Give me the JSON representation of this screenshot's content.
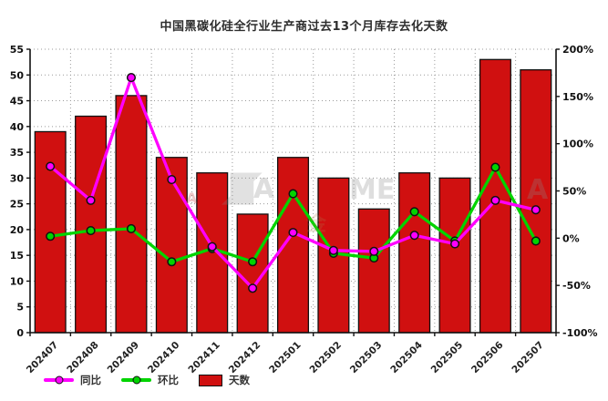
{
  "chart": {
    "title": "中国黑碳化硅全行业生产商过去13个月库存去化天数"
  },
  "chart_data": {
    "type": "combo",
    "categories": [
      "202407",
      "202408",
      "202409",
      "202410",
      "202411",
      "202412",
      "202501",
      "202502",
      "202503",
      "202504",
      "202505",
      "202506",
      "202507"
    ],
    "series": [
      {
        "name": "同比",
        "type": "line",
        "axis": "right",
        "color": "#ff00ff",
        "values": [
          76,
          40,
          170,
          62,
          -9,
          -53,
          6,
          -13,
          -14,
          3,
          -6,
          40,
          30
        ]
      },
      {
        "name": "环比",
        "type": "line",
        "axis": "right",
        "color": "#00d400",
        "values": [
          2,
          8,
          10,
          -25,
          -11,
          -25,
          47,
          -16,
          -21,
          28,
          -3,
          75,
          -3
        ]
      },
      {
        "name": "天数",
        "type": "bar",
        "axis": "left",
        "color": "#d01010",
        "values": [
          39,
          42,
          46,
          34,
          31,
          23,
          34,
          30,
          24,
          31,
          30,
          53,
          51
        ]
      }
    ],
    "y_left": {
      "min": 0,
      "max": 55,
      "step": 5,
      "labels": [
        "55",
        "50",
        "45",
        "40",
        "35",
        "30",
        "25",
        "20",
        "15",
        "10",
        "5",
        "0"
      ]
    },
    "y_right": {
      "min": -100,
      "max": 200,
      "step": 50,
      "labels": [
        "200%",
        "150%",
        "100%",
        "50%",
        "0%",
        "-50%",
        "-100%"
      ]
    },
    "grid": true,
    "legend_position": "bottom-left",
    "colors": {
      "bar_border": "#111111",
      "grid": "#9a9a9a",
      "axis": "#111111"
    }
  },
  "watermark": {
    "logo_glyph": "◢◤",
    "letters": [
      "A",
      "ME",
      "A",
      "金",
      "A"
    ]
  }
}
